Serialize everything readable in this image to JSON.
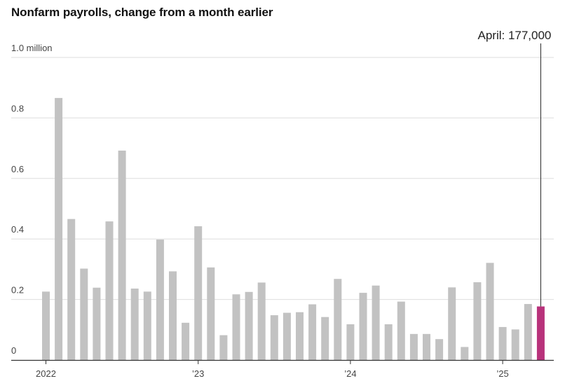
{
  "chart_data": {
    "type": "bar",
    "title": "Nonfarm payrolls, change from a month earlier",
    "ylabel": "",
    "xlabel": "",
    "ylim": [
      0,
      1.0
    ],
    "y_ticks": [
      {
        "value": 0,
        "label": "0"
      },
      {
        "value": 0.2,
        "label": "0.2"
      },
      {
        "value": 0.4,
        "label": "0.4"
      },
      {
        "value": 0.6,
        "label": "0.6"
      },
      {
        "value": 0.8,
        "label": "0.8"
      },
      {
        "value": 1.0,
        "label": "1.0 million"
      }
    ],
    "x_ticks": [
      {
        "index": 0,
        "label": "2022"
      },
      {
        "index": 12,
        "label": "’23"
      },
      {
        "index": 24,
        "label": "’24"
      },
      {
        "index": 36,
        "label": "’25"
      }
    ],
    "values": [
      0.226,
      0.866,
      0.466,
      0.302,
      0.239,
      0.458,
      0.692,
      0.236,
      0.226,
      0.398,
      0.293,
      0.123,
      0.442,
      0.306,
      0.082,
      0.217,
      0.225,
      0.256,
      0.148,
      0.156,
      0.158,
      0.184,
      0.142,
      0.268,
      0.118,
      0.222,
      0.246,
      0.118,
      0.193,
      0.086,
      0.086,
      0.069,
      0.24,
      0.043,
      0.257,
      0.321,
      0.109,
      0.101,
      0.185,
      0.177
    ],
    "highlight_index": 39,
    "bar_color": "#c2c2c2",
    "highlight_color": "#b8327b",
    "annotation": {
      "label": "April: 177,000",
      "index": 39
    }
  }
}
